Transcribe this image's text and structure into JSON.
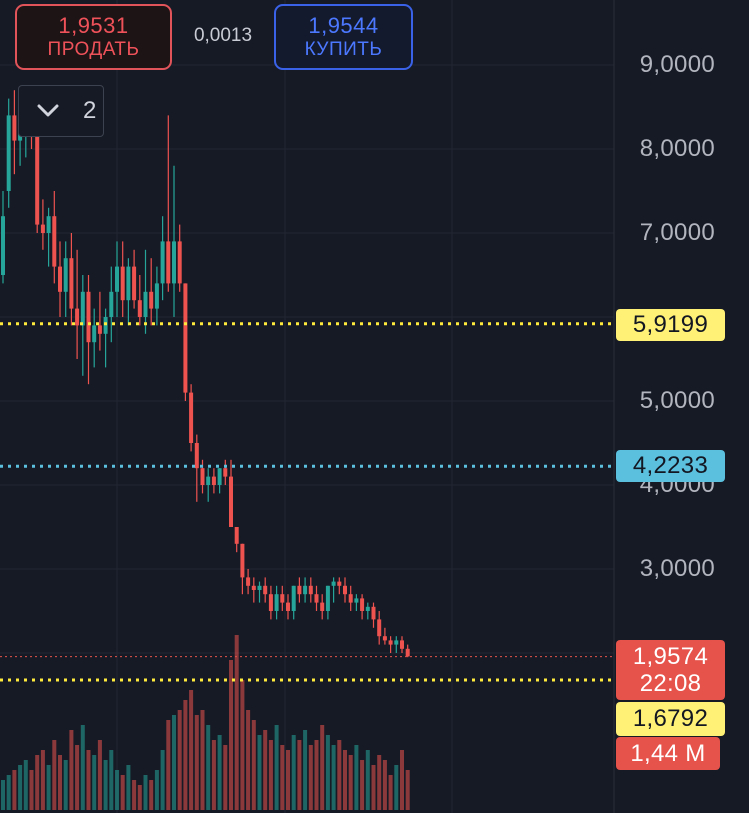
{
  "trade_panel": {
    "sell": {
      "price": "1,9531",
      "label": "ПРОДАТЬ"
    },
    "spread": "0,0013",
    "buy": {
      "price": "1,9544",
      "label": "КУПИТЬ"
    }
  },
  "indicator_toggle": {
    "count": "2",
    "icon": "chevron-down-icon"
  },
  "price_axis": {
    "labels": [
      {
        "text": "9,0000",
        "value": 9.0
      },
      {
        "text": "8,0000",
        "value": 8.0
      },
      {
        "text": "7,0000",
        "value": 7.0
      },
      {
        "text": "5,0000",
        "value": 5.0
      },
      {
        "text": "4,0000",
        "value": 4.0
      },
      {
        "text": "3,0000",
        "value": 3.0
      }
    ]
  },
  "levels": {
    "upper": {
      "price": 5.9199,
      "text": "5,9199",
      "color": "#ffeb3b"
    },
    "bid": {
      "price": 4.2233,
      "text": "4,2233",
      "color": "#5bc0de"
    },
    "last": {
      "price": 1.9574,
      "text": "1,9574",
      "timer": "22:08",
      "color": "#e5534b"
    },
    "lower": {
      "price": 1.6792,
      "text": "1,6792",
      "color": "#ffeb3b"
    },
    "volume": {
      "text": "1,44 M",
      "color": "#e5534b"
    }
  },
  "colors": {
    "up": "#26a69a",
    "down": "#ef5350",
    "background": "#161a25",
    "grid": "#222633"
  },
  "chart_data": {
    "type": "candlestick",
    "y_scale": "linear",
    "candles": [
      {
        "o": 6.5,
        "h": 7.5,
        "l": 6.4,
        "c": 7.2
      },
      {
        "o": 7.5,
        "h": 8.6,
        "l": 7.3,
        "c": 8.4
      },
      {
        "o": 8.4,
        "h": 8.7,
        "l": 7.7,
        "c": 8.1
      },
      {
        "o": 8.1,
        "h": 8.6,
        "l": 7.8,
        "c": 8.3
      },
      {
        "o": 8.2,
        "h": 8.5,
        "l": 7.9,
        "c": 8.4
      },
      {
        "o": 8.4,
        "h": 8.6,
        "l": 8.0,
        "c": 8.2
      },
      {
        "o": 8.2,
        "h": 8.3,
        "l": 7.0,
        "c": 7.1
      },
      {
        "o": 7.1,
        "h": 7.4,
        "l": 6.8,
        "c": 7.0
      },
      {
        "o": 7.0,
        "h": 7.3,
        "l": 6.6,
        "c": 7.2
      },
      {
        "o": 7.2,
        "h": 7.5,
        "l": 6.4,
        "c": 6.6
      },
      {
        "o": 6.6,
        "h": 6.9,
        "l": 6.0,
        "c": 6.3
      },
      {
        "o": 6.3,
        "h": 6.9,
        "l": 6.0,
        "c": 6.7
      },
      {
        "o": 6.7,
        "h": 7.0,
        "l": 5.9,
        "c": 6.1
      },
      {
        "o": 6.1,
        "h": 6.8,
        "l": 5.5,
        "c": 5.9
      },
      {
        "o": 5.9,
        "h": 6.5,
        "l": 5.3,
        "c": 6.3
      },
      {
        "o": 6.3,
        "h": 6.5,
        "l": 5.2,
        "c": 5.7
      },
      {
        "o": 5.7,
        "h": 6.1,
        "l": 5.4,
        "c": 5.9
      },
      {
        "o": 5.9,
        "h": 6.3,
        "l": 5.6,
        "c": 5.8
      },
      {
        "o": 5.8,
        "h": 6.1,
        "l": 5.4,
        "c": 6.0
      },
      {
        "o": 6.0,
        "h": 6.6,
        "l": 5.7,
        "c": 6.3
      },
      {
        "o": 6.3,
        "h": 6.9,
        "l": 6.0,
        "c": 6.6
      },
      {
        "o": 6.6,
        "h": 6.9,
        "l": 6.0,
        "c": 6.2
      },
      {
        "o": 6.2,
        "h": 6.7,
        "l": 5.9,
        "c": 6.6
      },
      {
        "o": 6.6,
        "h": 6.8,
        "l": 6.1,
        "c": 6.2
      },
      {
        "o": 6.2,
        "h": 6.5,
        "l": 5.9,
        "c": 6.0
      },
      {
        "o": 6.0,
        "h": 6.8,
        "l": 5.8,
        "c": 6.3
      },
      {
        "o": 6.3,
        "h": 6.7,
        "l": 5.9,
        "c": 6.1
      },
      {
        "o": 6.1,
        "h": 6.6,
        "l": 5.9,
        "c": 6.4
      },
      {
        "o": 6.4,
        "h": 7.2,
        "l": 6.2,
        "c": 6.9
      },
      {
        "o": 6.9,
        "h": 8.4,
        "l": 6.3,
        "c": 6.4
      },
      {
        "o": 6.4,
        "h": 7.8,
        "l": 6.0,
        "c": 6.9
      },
      {
        "o": 6.9,
        "h": 7.1,
        "l": 6.3,
        "c": 6.4
      },
      {
        "o": 6.4,
        "h": 6.4,
        "l": 5.0,
        "c": 5.1
      },
      {
        "o": 5.1,
        "h": 5.2,
        "l": 4.4,
        "c": 4.5
      },
      {
        "o": 4.5,
        "h": 4.6,
        "l": 3.8,
        "c": 4.2
      },
      {
        "o": 4.2,
        "h": 4.3,
        "l": 3.9,
        "c": 4.0
      },
      {
        "o": 4.0,
        "h": 4.2,
        "l": 3.8,
        "c": 4.1
      },
      {
        "o": 4.1,
        "h": 4.2,
        "l": 3.9,
        "c": 4.0
      },
      {
        "o": 4.0,
        "h": 4.2,
        "l": 3.9,
        "c": 4.2
      },
      {
        "o": 4.2,
        "h": 4.3,
        "l": 4.0,
        "c": 4.1
      },
      {
        "o": 4.1,
        "h": 4.3,
        "l": 3.5,
        "c": 3.5
      },
      {
        "o": 3.5,
        "h": 3.5,
        "l": 3.2,
        "c": 3.3
      },
      {
        "o": 3.3,
        "h": 3.3,
        "l": 2.7,
        "c": 2.9
      },
      {
        "o": 2.9,
        "h": 3.0,
        "l": 2.7,
        "c": 2.8
      },
      {
        "o": 2.8,
        "h": 2.9,
        "l": 2.6,
        "c": 2.75
      },
      {
        "o": 2.75,
        "h": 2.85,
        "l": 2.6,
        "c": 2.8
      },
      {
        "o": 2.8,
        "h": 2.9,
        "l": 2.6,
        "c": 2.7
      },
      {
        "o": 2.7,
        "h": 2.8,
        "l": 2.4,
        "c": 2.5
      },
      {
        "o": 2.5,
        "h": 2.8,
        "l": 2.4,
        "c": 2.7
      },
      {
        "o": 2.7,
        "h": 2.8,
        "l": 2.5,
        "c": 2.6
      },
      {
        "o": 2.6,
        "h": 2.7,
        "l": 2.4,
        "c": 2.5
      },
      {
        "o": 2.5,
        "h": 2.8,
        "l": 2.4,
        "c": 2.8
      },
      {
        "o": 2.8,
        "h": 2.9,
        "l": 2.6,
        "c": 2.7
      },
      {
        "o": 2.7,
        "h": 2.9,
        "l": 2.6,
        "c": 2.8
      },
      {
        "o": 2.8,
        "h": 2.9,
        "l": 2.6,
        "c": 2.7
      },
      {
        "o": 2.7,
        "h": 2.8,
        "l": 2.5,
        "c": 2.6
      },
      {
        "o": 2.6,
        "h": 2.7,
        "l": 2.4,
        "c": 2.5
      },
      {
        "o": 2.5,
        "h": 2.8,
        "l": 2.4,
        "c": 2.8
      },
      {
        "o": 2.8,
        "h": 2.9,
        "l": 2.6,
        "c": 2.85
      },
      {
        "o": 2.85,
        "h": 2.9,
        "l": 2.7,
        "c": 2.8
      },
      {
        "o": 2.8,
        "h": 2.9,
        "l": 2.6,
        "c": 2.7
      },
      {
        "o": 2.7,
        "h": 2.8,
        "l": 2.5,
        "c": 2.6
      },
      {
        "o": 2.6,
        "h": 2.7,
        "l": 2.5,
        "c": 2.65
      },
      {
        "o": 2.65,
        "h": 2.7,
        "l": 2.4,
        "c": 2.5
      },
      {
        "o": 2.5,
        "h": 2.6,
        "l": 2.4,
        "c": 2.55
      },
      {
        "o": 2.55,
        "h": 2.6,
        "l": 2.3,
        "c": 2.4
      },
      {
        "o": 2.4,
        "h": 2.5,
        "l": 2.1,
        "c": 2.2
      },
      {
        "o": 2.2,
        "h": 2.3,
        "l": 2.1,
        "c": 2.15
      },
      {
        "o": 2.15,
        "h": 2.2,
        "l": 2.0,
        "c": 2.1
      },
      {
        "o": 2.1,
        "h": 2.2,
        "l": 2.0,
        "c": 2.15
      },
      {
        "o": 2.15,
        "h": 2.2,
        "l": 2.0,
        "c": 2.05
      },
      {
        "o": 2.05,
        "h": 2.1,
        "l": 1.95,
        "c": 1.96
      }
    ],
    "volume": [
      30,
      35,
      40,
      45,
      50,
      40,
      55,
      60,
      45,
      70,
      55,
      50,
      80,
      65,
      85,
      60,
      55,
      70,
      50,
      60,
      40,
      35,
      45,
      30,
      25,
      35,
      30,
      40,
      60,
      90,
      95,
      100,
      110,
      120,
      95,
      100,
      85,
      70,
      75,
      65,
      150,
      175,
      130,
      100,
      90,
      75,
      80,
      70,
      85,
      65,
      60,
      75,
      70,
      80,
      65,
      70,
      85,
      75,
      65,
      70,
      60,
      55,
      65,
      50,
      60,
      45,
      55,
      50,
      35,
      45,
      60,
      40
    ]
  }
}
